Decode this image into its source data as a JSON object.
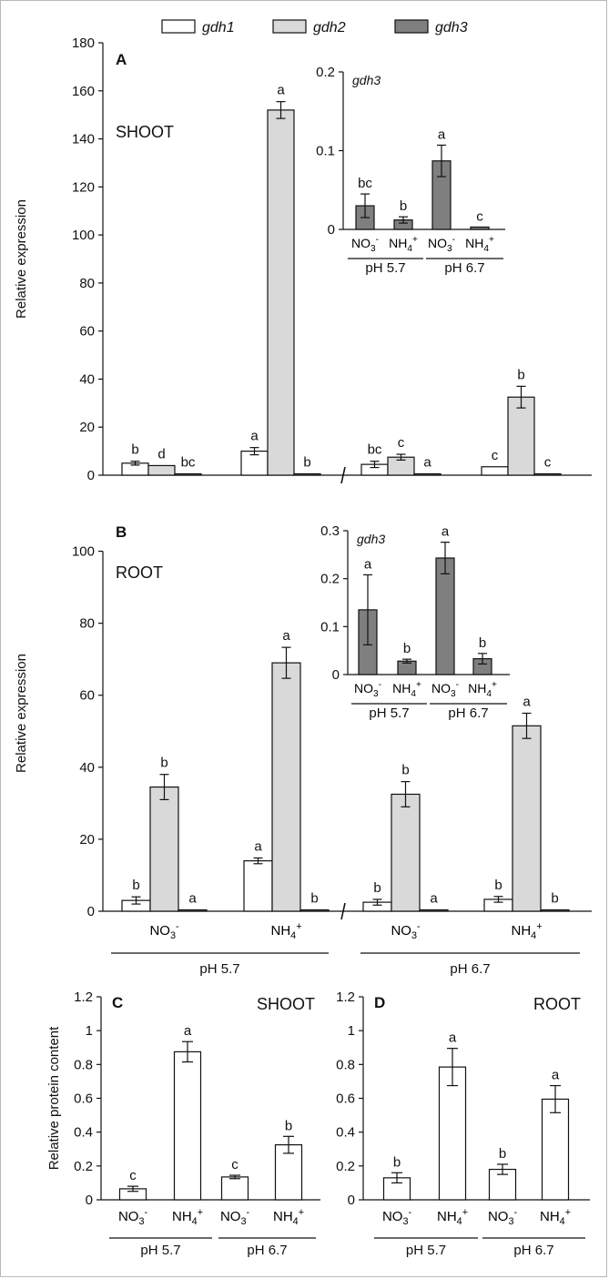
{
  "legend": {
    "items": [
      {
        "label": "gdh1",
        "color": "#ffffff"
      },
      {
        "label": "gdh2",
        "color": "#d9d9d9"
      },
      {
        "label": "gdh3",
        "color": "#7f7f7f"
      }
    ]
  },
  "colors": {
    "gdh1": "#ffffff",
    "gdh2": "#d9d9d9",
    "gdh3": "#7f7f7f",
    "axis": "#111111"
  },
  "chart_data": [
    {
      "id": "A",
      "type": "bar",
      "panel_label": "A",
      "organ_label": "SHOOT",
      "ylabel": "Relative expression",
      "ylim": [
        0,
        180
      ],
      "yticks": [
        "0",
        "20",
        "40",
        "60",
        "80",
        "100",
        "120",
        "140",
        "160",
        "180"
      ],
      "groups": [
        {
          "x_label": "",
          "ph": "pH 5.7",
          "genes": [
            {
              "gene": "gdh1",
              "value": 5.0,
              "err": 0.8,
              "letter": "b"
            },
            {
              "gene": "gdh2",
              "value": 4.0,
              "err": 0,
              "letter": "d"
            },
            {
              "gene": "gdh3",
              "value": 0.5,
              "err": 0,
              "letter": "bc"
            }
          ]
        },
        {
          "x_label": "",
          "ph": "pH 5.7",
          "genes": [
            {
              "gene": "gdh1",
              "value": 10.0,
              "err": 1.5,
              "letter": "a"
            },
            {
              "gene": "gdh2",
              "value": 152,
              "err": 3.5,
              "letter": "a"
            },
            {
              "gene": "gdh3",
              "value": 0.5,
              "err": 0,
              "letter": "b"
            }
          ]
        },
        {
          "x_label": "",
          "ph": "pH 6.7",
          "genes": [
            {
              "gene": "gdh1",
              "value": 4.5,
              "err": 1.3,
              "letter": "bc"
            },
            {
              "gene": "gdh2",
              "value": 7.5,
              "err": 1.2,
              "letter": "c"
            },
            {
              "gene": "gdh3",
              "value": 0.5,
              "err": 0,
              "letter": "a"
            }
          ]
        },
        {
          "x_label": "",
          "ph": "pH 6.7",
          "genes": [
            {
              "gene": "gdh1",
              "value": 3.5,
              "err": 0,
              "letter": "c"
            },
            {
              "gene": "gdh2",
              "value": 32.5,
              "err": 4.5,
              "letter": "b"
            },
            {
              "gene": "gdh3",
              "value": 0.5,
              "err": 0,
              "letter": "c"
            }
          ]
        }
      ]
    },
    {
      "id": "A-inset",
      "type": "bar",
      "inset_title": "gdh3",
      "ylim": [
        0,
        0.2
      ],
      "yticks": [
        "0",
        "0.1",
        "0.2"
      ],
      "categories": [
        "NO3-",
        "NH4+",
        "NO3-",
        "NH4+"
      ],
      "ph_labels": [
        "pH 5.7",
        "pH 6.7"
      ],
      "values": [
        0.03,
        0.012,
        0.087,
        0.003
      ],
      "errors": [
        0.015,
        0.004,
        0.02,
        0
      ],
      "letters": [
        "bc",
        "b",
        "a",
        "c"
      ]
    },
    {
      "id": "B",
      "type": "bar",
      "panel_label": "B",
      "organ_label": "ROOT",
      "ylabel": "Relative expression",
      "ylim": [
        0,
        110
      ],
      "yticks": [
        "0",
        "20",
        "40",
        "60",
        "80",
        "100"
      ],
      "groups": [
        {
          "x_label": "NO3-",
          "ph": "pH 5.7",
          "genes": [
            {
              "gene": "gdh1",
              "value": 3.0,
              "err": 1.0,
              "letter": "b"
            },
            {
              "gene": "gdh2",
              "value": 34.5,
              "err": 3.5,
              "letter": "b"
            },
            {
              "gene": "gdh3",
              "value": 0.3,
              "err": 0,
              "letter": "a"
            }
          ]
        },
        {
          "x_label": "NH4+",
          "ph": "pH 5.7",
          "genes": [
            {
              "gene": "gdh1",
              "value": 14.0,
              "err": 0.8,
              "letter": "a"
            },
            {
              "gene": "gdh2",
              "value": 69.0,
              "err": 4.3,
              "letter": "a"
            },
            {
              "gene": "gdh3",
              "value": 0.3,
              "err": 0,
              "letter": "b"
            }
          ]
        },
        {
          "x_label": "NO3-",
          "ph": "pH 6.7",
          "genes": [
            {
              "gene": "gdh1",
              "value": 2.5,
              "err": 0.8,
              "letter": "b"
            },
            {
              "gene": "gdh2",
              "value": 32.5,
              "err": 3.5,
              "letter": "b"
            },
            {
              "gene": "gdh3",
              "value": 0.3,
              "err": 0,
              "letter": "a"
            }
          ]
        },
        {
          "x_label": "NH4+",
          "ph": "pH 6.7",
          "genes": [
            {
              "gene": "gdh1",
              "value": 3.3,
              "err": 0.8,
              "letter": "b"
            },
            {
              "gene": "gdh2",
              "value": 51.5,
              "err": 3.5,
              "letter": "a"
            },
            {
              "gene": "gdh3",
              "value": 0.3,
              "err": 0,
              "letter": "b"
            }
          ]
        }
      ],
      "ph_labels": [
        "pH 5.7",
        "pH 6.7"
      ]
    },
    {
      "id": "B-inset",
      "type": "bar",
      "inset_title": "gdh3",
      "ylim": [
        0,
        0.3
      ],
      "yticks": [
        "0",
        "0.1",
        "0.2",
        "0.3"
      ],
      "categories": [
        "NO3-",
        "NH4+",
        "NO3-",
        "NH4+"
      ],
      "ph_labels": [
        "pH 5.7",
        "pH 6.7"
      ],
      "values": [
        0.135,
        0.028,
        0.243,
        0.033
      ],
      "errors": [
        0.073,
        0.004,
        0.033,
        0.011
      ],
      "letters": [
        "a",
        "b",
        "a",
        "b"
      ]
    },
    {
      "id": "C",
      "type": "bar",
      "panel_label": "C",
      "organ_label": "SHOOT",
      "ylabel": "Relative protein content",
      "ylim": [
        0,
        1.2
      ],
      "yticks": [
        "0",
        "0.2",
        "0.4",
        "0.6",
        "0.8",
        "1",
        "1.2"
      ],
      "categories": [
        "NO3-",
        "NH4+",
        "NO3-",
        "NH4+"
      ],
      "ph_labels": [
        "pH 5.7",
        "pH 6.7"
      ],
      "values": [
        0.065,
        0.875,
        0.135,
        0.325
      ],
      "errors": [
        0.015,
        0.06,
        0.01,
        0.05
      ],
      "letters": [
        "c",
        "a",
        "c",
        "b"
      ]
    },
    {
      "id": "D",
      "type": "bar",
      "panel_label": "D",
      "organ_label": "ROOT",
      "ylabel": "",
      "ylim": [
        0,
        1.2
      ],
      "yticks": [
        "0",
        "0.2",
        "0.4",
        "0.6",
        "0.8",
        "1",
        "1.2"
      ],
      "categories": [
        "NO3-",
        "NH4+",
        "NO3-",
        "NH4+"
      ],
      "ph_labels": [
        "pH 5.7",
        "pH 6.7"
      ],
      "values": [
        0.13,
        0.785,
        0.18,
        0.595
      ],
      "errors": [
        0.03,
        0.11,
        0.03,
        0.08
      ],
      "letters": [
        "b",
        "a",
        "b",
        "a"
      ]
    }
  ]
}
